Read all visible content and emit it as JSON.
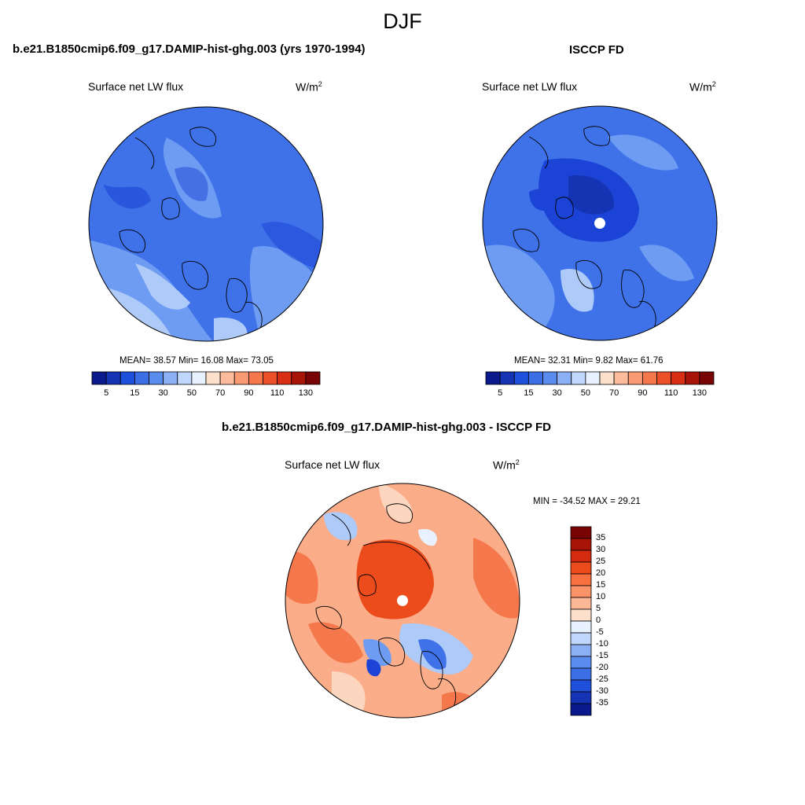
{
  "title": "DJF",
  "panels": [
    {
      "id": "model",
      "title": "b.e21.B1850cmip6.f09_g17.DAMIP-hist-ghg.003 (yrs 1970-1994)",
      "variable": "Surface net LW flux",
      "units_base": "W/m",
      "units_exp": "2",
      "stats": "MEAN=  38.57  Min=  16.08  Max=  73.05",
      "mean": 38.57,
      "min": 16.08,
      "max": 73.05
    },
    {
      "id": "obs",
      "title": "ISCCP FD",
      "variable": "Surface net LW flux",
      "units_base": "W/m",
      "units_exp": "2",
      "stats": "MEAN=  32.31  Min=  9.82  Max=  61.76",
      "mean": 32.31,
      "min": 9.82,
      "max": 61.76
    },
    {
      "id": "diff",
      "title": "b.e21.B1850cmip6.f09_g17.DAMIP-hist-ghg.003 - ISCCP FD",
      "variable": "Surface net LW flux",
      "units_base": "W/m",
      "units_exp": "2",
      "stats": "MIN = -34.52 MAX =  29.21",
      "min": -34.52,
      "max": 29.21
    }
  ],
  "abs_colorbar": {
    "ticks": [
      "5",
      "15",
      "30",
      "50",
      "70",
      "90",
      "110",
      "130"
    ],
    "colors": [
      "#0a1a8c",
      "#1434b4",
      "#1e50dc",
      "#3c6ee6",
      "#5a8cf0",
      "#8cb0f5",
      "#c0d6fa",
      "#e8f2ff",
      "#fde0cc",
      "#fcbc9c",
      "#fa9a74",
      "#f5784c",
      "#ec5028",
      "#d82e14",
      "#a81408",
      "#780404"
    ]
  },
  "diff_colorbar": {
    "ticks": [
      "35",
      "30",
      "25",
      "20",
      "15",
      "10",
      "5",
      "0",
      "-5",
      "-10",
      "-15",
      "-20",
      "-25",
      "-30",
      "-35"
    ],
    "colors": [
      "#780404",
      "#a81408",
      "#d42a10",
      "#ec4c1c",
      "#f77040",
      "#fa9468",
      "#fcb896",
      "#fde0cc",
      "#e8f2ff",
      "#c0d6fa",
      "#8cb0f5",
      "#5a8cf0",
      "#3c6ee6",
      "#1e50dc",
      "#1434b4",
      "#0a1a8c"
    ]
  },
  "colors": {
    "blue_dark": "#1b44d6",
    "blue_mid": "#3f72e8",
    "blue_light": "#6f9cf3",
    "blue_pale": "#aecaf8",
    "red_mid": "#f5784c",
    "red_light": "#fbac88",
    "red_pale": "#fdd6c0"
  }
}
